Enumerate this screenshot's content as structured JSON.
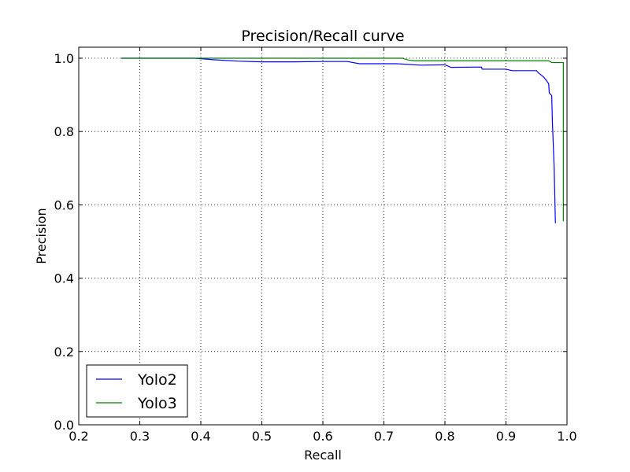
{
  "chart_data": {
    "type": "line",
    "title": "Precision/Recall curve",
    "xlabel": "Recall",
    "ylabel": "Precision",
    "xlim": [
      0.2,
      1.0
    ],
    "ylim": [
      0.0,
      1.03
    ],
    "xticks": [
      "0.2",
      "0.3",
      "0.4",
      "0.5",
      "0.6",
      "0.7",
      "0.8",
      "0.9",
      "1.0"
    ],
    "yticks": [
      "0.0",
      "0.2",
      "0.4",
      "0.6",
      "0.8",
      "1.0"
    ],
    "grid": true,
    "legend_position": "lower-left",
    "series": [
      {
        "name": "Yolo2",
        "color": "#0000ff",
        "points": [
          [
            0.27,
            1.0
          ],
          [
            0.39,
            1.0
          ],
          [
            0.42,
            0.996
          ],
          [
            0.46,
            0.992
          ],
          [
            0.5,
            0.99
          ],
          [
            0.55,
            0.99
          ],
          [
            0.6,
            0.991
          ],
          [
            0.64,
            0.991
          ],
          [
            0.66,
            0.985
          ],
          [
            0.7,
            0.985
          ],
          [
            0.72,
            0.985
          ],
          [
            0.76,
            0.981
          ],
          [
            0.8,
            0.982
          ],
          [
            0.81,
            0.975
          ],
          [
            0.86,
            0.976
          ],
          [
            0.861,
            0.97
          ],
          [
            0.9,
            0.97
          ],
          [
            0.91,
            0.966
          ],
          [
            0.95,
            0.966
          ],
          [
            0.953,
            0.96
          ],
          [
            0.957,
            0.955
          ],
          [
            0.962,
            0.948
          ],
          [
            0.966,
            0.94
          ],
          [
            0.97,
            0.93
          ],
          [
            0.971,
            0.905
          ],
          [
            0.975,
            0.898
          ],
          [
            0.976,
            0.83
          ],
          [
            0.979,
            0.7
          ],
          [
            0.981,
            0.55
          ]
        ]
      },
      {
        "name": "Yolo3",
        "color": "#008000",
        "points": [
          [
            0.27,
            1.0
          ],
          [
            0.73,
            1.0
          ],
          [
            0.74,
            0.995
          ],
          [
            0.75,
            0.993
          ],
          [
            0.97,
            0.993
          ],
          [
            0.975,
            0.988
          ],
          [
            0.994,
            0.988
          ],
          [
            0.994,
            0.555
          ]
        ]
      }
    ]
  }
}
